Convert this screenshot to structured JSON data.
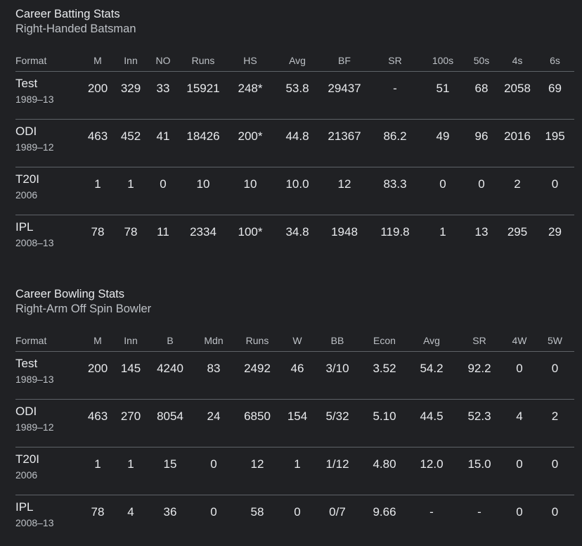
{
  "batting": {
    "title": "Career Batting Stats",
    "subtitle": "Right-Handed Batsman",
    "columns": [
      "Format",
      "M",
      "Inn",
      "NO",
      "Runs",
      "HS",
      "Avg",
      "BF",
      "SR",
      "100s",
      "50s",
      "4s",
      "6s"
    ],
    "rows": [
      {
        "format": "Test",
        "years": "1989–13",
        "values": [
          "200",
          "329",
          "33",
          "15921",
          "248*",
          "53.8",
          "29437",
          "-",
          "51",
          "68",
          "2058",
          "69"
        ]
      },
      {
        "format": "ODI",
        "years": "1989–12",
        "values": [
          "463",
          "452",
          "41",
          "18426",
          "200*",
          "44.8",
          "21367",
          "86.2",
          "49",
          "96",
          "2016",
          "195"
        ]
      },
      {
        "format": "T20I",
        "years": "2006",
        "values": [
          "1",
          "1",
          "0",
          "10",
          "10",
          "10.0",
          "12",
          "83.3",
          "0",
          "0",
          "2",
          "0"
        ]
      },
      {
        "format": "IPL",
        "years": "2008–13",
        "values": [
          "78",
          "78",
          "11",
          "2334",
          "100*",
          "34.8",
          "1948",
          "119.8",
          "1",
          "13",
          "295",
          "29"
        ]
      }
    ]
  },
  "bowling": {
    "title": "Career Bowling Stats",
    "subtitle": "Right-Arm Off Spin Bowler",
    "columns": [
      "Format",
      "M",
      "Inn",
      "B",
      "Mdn",
      "Runs",
      "W",
      "BB",
      "Econ",
      "Avg",
      "SR",
      "4W",
      "5W"
    ],
    "rows": [
      {
        "format": "Test",
        "years": "1989–13",
        "values": [
          "200",
          "145",
          "4240",
          "83",
          "2492",
          "46",
          "3/10",
          "3.52",
          "54.2",
          "92.2",
          "0",
          "0"
        ]
      },
      {
        "format": "ODI",
        "years": "1989–12",
        "values": [
          "463",
          "270",
          "8054",
          "24",
          "6850",
          "154",
          "5/32",
          "5.10",
          "44.5",
          "52.3",
          "4",
          "2"
        ]
      },
      {
        "format": "T20I",
        "years": "2006",
        "values": [
          "1",
          "1",
          "15",
          "0",
          "12",
          "1",
          "1/12",
          "4.80",
          "12.0",
          "15.0",
          "0",
          "0"
        ]
      },
      {
        "format": "IPL",
        "years": "2008–13",
        "values": [
          "78",
          "4",
          "36",
          "0",
          "58",
          "0",
          "0/7",
          "9.66",
          "-",
          "-",
          "0",
          "0"
        ]
      }
    ]
  }
}
